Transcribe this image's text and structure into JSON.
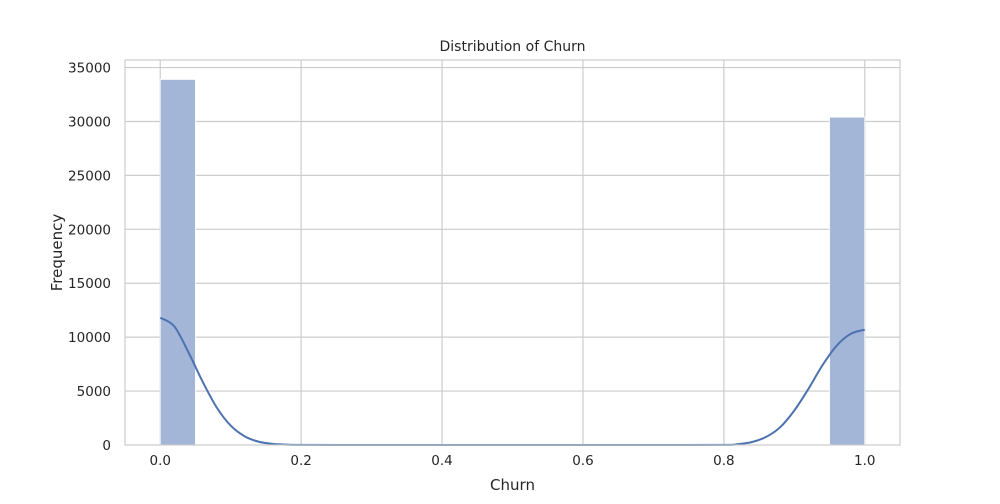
{
  "chart_data": {
    "type": "bar",
    "title": "Distribution of Churn",
    "xlabel": "Churn",
    "ylabel": "Frequency",
    "xlim": [
      -0.05,
      1.05
    ],
    "ylim": [
      0,
      35700
    ],
    "x_ticks": [
      0.0,
      0.2,
      0.4,
      0.6,
      0.8,
      1.0
    ],
    "x_tick_labels": [
      "0.0",
      "0.2",
      "0.4",
      "0.6",
      "0.8",
      "1.0"
    ],
    "y_ticks": [
      0,
      5000,
      10000,
      15000,
      20000,
      25000,
      30000,
      35000
    ],
    "y_tick_labels": [
      "0",
      "5000",
      "10000",
      "15000",
      "20000",
      "25000",
      "30000",
      "35000"
    ],
    "grid": true,
    "histogram": {
      "bins": 20,
      "bin_width": 0.05,
      "bars": [
        {
          "x0": 0.0,
          "x1": 0.05,
          "count": 33900
        },
        {
          "x0": 0.95,
          "x1": 1.0,
          "count": 30400
        }
      ]
    },
    "kde": {
      "x": [
        0.0,
        0.02,
        0.04,
        0.06,
        0.08,
        0.1,
        0.12,
        0.14,
        0.16,
        0.18,
        0.2,
        0.3,
        0.4,
        0.5,
        0.6,
        0.7,
        0.8,
        0.82,
        0.84,
        0.86,
        0.88,
        0.9,
        0.92,
        0.94,
        0.96,
        0.98,
        1.0
      ],
      "y": [
        11800,
        11000,
        8600,
        5900,
        3500,
        1800,
        800,
        300,
        100,
        30,
        10,
        0,
        0,
        0,
        0,
        0,
        10,
        80,
        280,
        750,
        1650,
        3200,
        5200,
        7400,
        9200,
        10300,
        10700
      ]
    },
    "colors": {
      "bar_fill": "#a4b6d8",
      "bar_stroke": "#ffffff",
      "kde_line": "#4c72b0",
      "grid": "#cccccc",
      "spine": "#cccccc",
      "background": "#ffffff"
    }
  }
}
